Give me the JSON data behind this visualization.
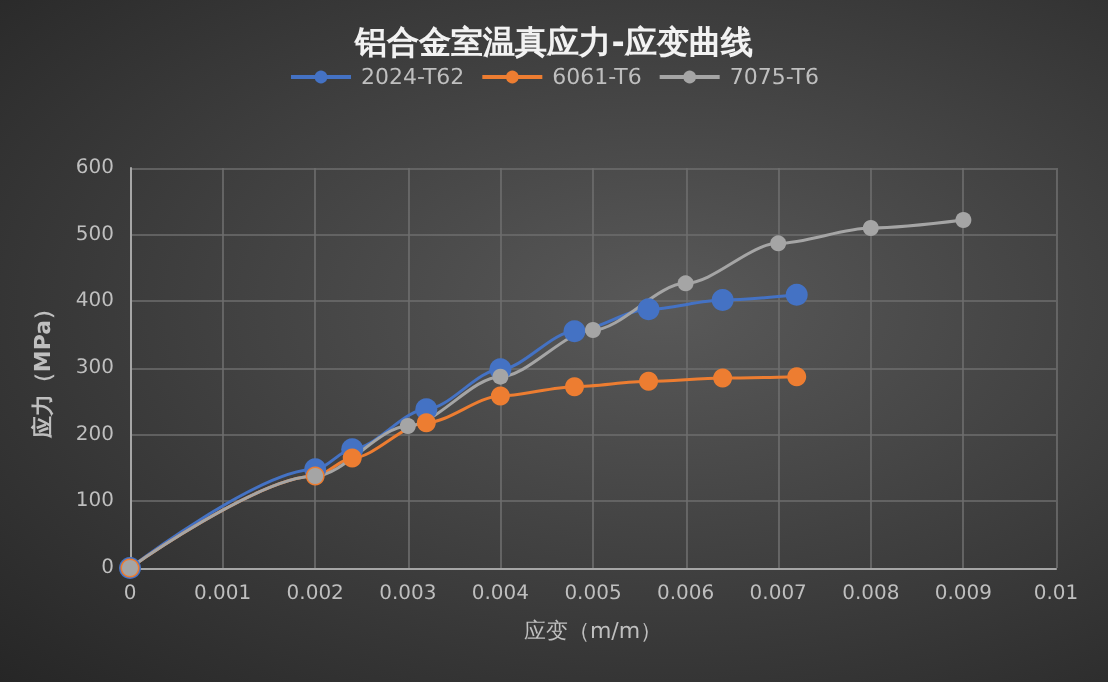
{
  "chart_data": {
    "type": "line",
    "title": "铝合金室温真应力-应变曲线",
    "xlabel": "应变（m/m）",
    "ylabel": "应力（MPa）",
    "series": [
      {
        "name": "2024-T62",
        "color": "#4472c4",
        "x": [
          0,
          0.002,
          0.0024,
          0.0032,
          0.004,
          0.0048,
          0.0056,
          0.0064,
          0.0072
        ],
        "values": [
          0,
          148,
          178,
          238,
          298,
          355,
          388,
          402,
          410
        ]
      },
      {
        "name": "6061-T6",
        "color": "#ed7d31",
        "x": [
          0,
          0.002,
          0.0024,
          0.0032,
          0.004,
          0.0048,
          0.0056,
          0.0064,
          0.0072
        ],
        "values": [
          0,
          138,
          165,
          218,
          258,
          272,
          280,
          285,
          287
        ]
      },
      {
        "name": "7075-T6",
        "color": "#a5a5a5",
        "x": [
          0,
          0.002,
          0.003,
          0.004,
          0.005,
          0.006,
          0.007,
          0.008,
          0.009
        ],
        "values": [
          0,
          138,
          213,
          287,
          357,
          427,
          487,
          510,
          522
        ]
      }
    ],
    "xlim": [
      0,
      0.01
    ],
    "xticks": [
      0,
      0.001,
      0.002,
      0.003,
      0.004,
      0.005,
      0.006,
      0.007,
      0.008,
      0.009,
      0.01
    ],
    "ylim": [
      0,
      600
    ],
    "yticks": [
      0,
      100,
      200,
      300,
      400,
      500,
      600
    ],
    "grid": true,
    "legend": "top",
    "marker": "circle",
    "line_style": "solid"
  }
}
